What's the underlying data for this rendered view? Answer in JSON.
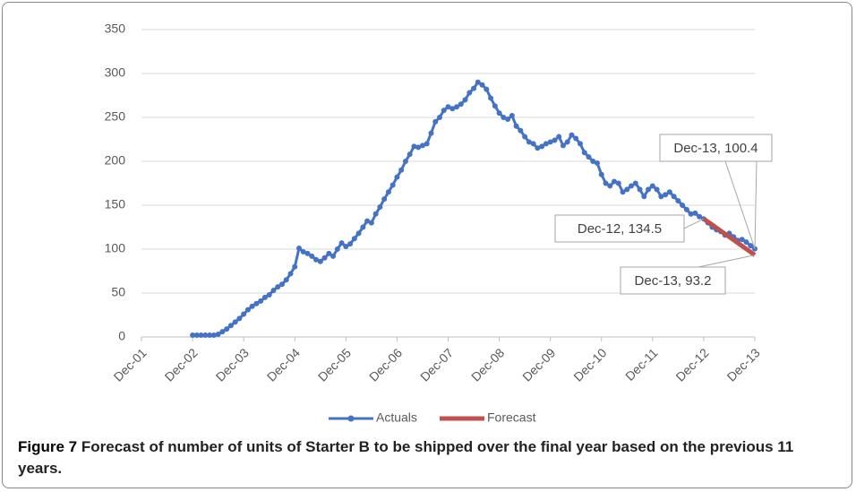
{
  "chart_data": {
    "type": "line",
    "xlim": [
      0,
      144
    ],
    "xticks": [
      {
        "value": 0,
        "label": "Dec-01"
      },
      {
        "value": 12,
        "label": "Dec-02"
      },
      {
        "value": 24,
        "label": "Dec-03"
      },
      {
        "value": 36,
        "label": "Dec-04"
      },
      {
        "value": 48,
        "label": "Dec-05"
      },
      {
        "value": 60,
        "label": "Dec-06"
      },
      {
        "value": 72,
        "label": "Dec-07"
      },
      {
        "value": 84,
        "label": "Dec-08"
      },
      {
        "value": 96,
        "label": "Dec-09"
      },
      {
        "value": 108,
        "label": "Dec-10"
      },
      {
        "value": 120,
        "label": "Dec-11"
      },
      {
        "value": 132,
        "label": "Dec-12"
      },
      {
        "value": 144,
        "label": "Dec-13"
      }
    ],
    "ylim": [
      0,
      350
    ],
    "yticks": [
      0,
      50,
      100,
      150,
      200,
      250,
      300,
      350
    ],
    "grid": true,
    "legend": "bottom",
    "series": [
      {
        "name": "Actuals",
        "color": "#4472c4",
        "x": [
          12,
          13,
          14,
          15,
          16,
          17,
          18,
          19,
          20,
          21,
          22,
          23,
          24,
          25,
          26,
          27,
          28,
          29,
          30,
          31,
          32,
          33,
          34,
          35,
          36,
          37,
          38,
          39,
          40,
          41,
          42,
          43,
          44,
          45,
          46,
          47,
          48,
          49,
          50,
          51,
          52,
          53,
          54,
          55,
          56,
          57,
          58,
          59,
          60,
          61,
          62,
          63,
          64,
          65,
          66,
          67,
          68,
          69,
          70,
          71,
          72,
          73,
          74,
          75,
          76,
          77,
          78,
          79,
          80,
          81,
          82,
          83,
          84,
          85,
          86,
          87,
          88,
          89,
          90,
          91,
          92,
          93,
          94,
          95,
          96,
          97,
          98,
          99,
          100,
          101,
          102,
          103,
          104,
          105,
          106,
          107,
          108,
          109,
          110,
          111,
          112,
          113,
          114,
          115,
          116,
          117,
          118,
          119,
          120,
          121,
          122,
          123,
          124,
          125,
          126,
          127,
          128,
          129,
          130,
          131,
          132,
          133,
          134,
          135,
          136,
          137,
          138,
          139,
          140,
          141,
          142,
          143,
          144
        ],
        "values": [
          2,
          2,
          2,
          2,
          2,
          2,
          3,
          6,
          9,
          13,
          17,
          21,
          26,
          31,
          35,
          38,
          41,
          45,
          48,
          53,
          57,
          60,
          65,
          72,
          80,
          101,
          97,
          95,
          92,
          88,
          86,
          90,
          95,
          92,
          100,
          107,
          103,
          106,
          112,
          118,
          125,
          132,
          130,
          140,
          148,
          157,
          165,
          173,
          182,
          190,
          200,
          208,
          217,
          216,
          218,
          220,
          232,
          245,
          250,
          258,
          262,
          260,
          262,
          265,
          270,
          278,
          283,
          290,
          287,
          282,
          272,
          263,
          255,
          250,
          248,
          252,
          240,
          235,
          228,
          222,
          220,
          215,
          217,
          220,
          222,
          224,
          228,
          218,
          222,
          230,
          226,
          220,
          210,
          205,
          200,
          198,
          185,
          175,
          172,
          177,
          175,
          165,
          168,
          172,
          175,
          168,
          160,
          168,
          172,
          168,
          160,
          162,
          165,
          160,
          155,
          150,
          145,
          140,
          141,
          137,
          134.5,
          130,
          125,
          122,
          120,
          116,
          118,
          114,
          110,
          111,
          108,
          104,
          100.4
        ]
      },
      {
        "name": "Forecast",
        "color": "#c0504d",
        "x": [
          132,
          133,
          134,
          135,
          136,
          137,
          138,
          139,
          140,
          141,
          142,
          143,
          144
        ],
        "values": [
          134.5,
          131.1,
          127.7,
          124.2,
          120.8,
          117.3,
          113.9,
          110.5,
          107.0,
          103.6,
          100.1,
          96.7,
          93.2
        ]
      }
    ],
    "annotations": [
      "Dec-12, 134.5",
      "Dec-13, 100.4",
      "Dec-13, 93.2"
    ],
    "caption_label": "Figure 7",
    "caption": "Forecast of number of units of Starter B to be shipped over the final year based on the previous 11 years."
  }
}
